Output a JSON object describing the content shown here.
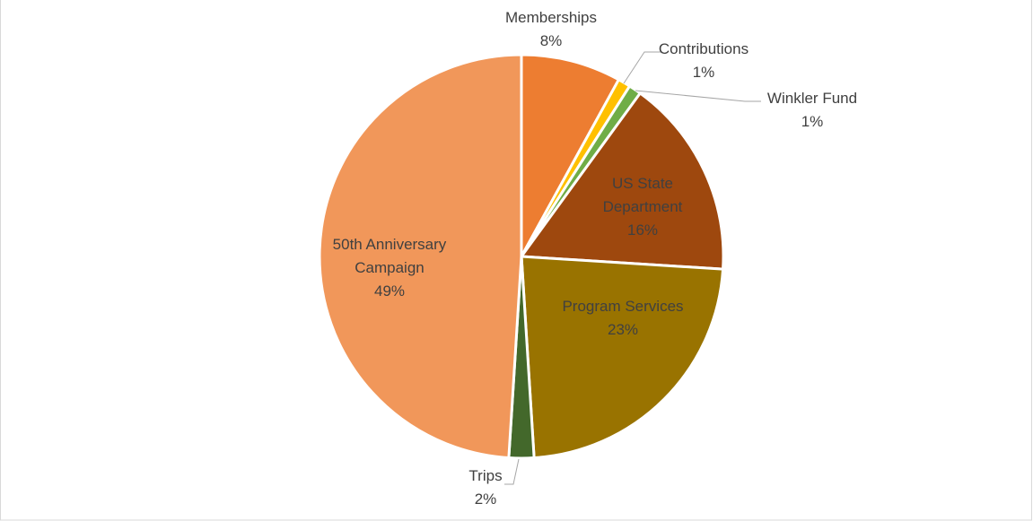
{
  "chart_data": {
    "type": "pie",
    "categories": [
      "Memberships",
      "Contributions",
      "Winkler Fund",
      "US State Department",
      "Program Services",
      "Trips",
      "50th Anniversary Campaign"
    ],
    "values": [
      8,
      1,
      1,
      16,
      23,
      2,
      49
    ],
    "value_labels": [
      "8%",
      "1%",
      "1%",
      "16%",
      "23%",
      "2%",
      "49%"
    ],
    "colors": [
      "#ED7D31",
      "#FFC000",
      "#70AD47",
      "#9E480E",
      "#997300",
      "#43682B",
      "#F1975A"
    ]
  }
}
